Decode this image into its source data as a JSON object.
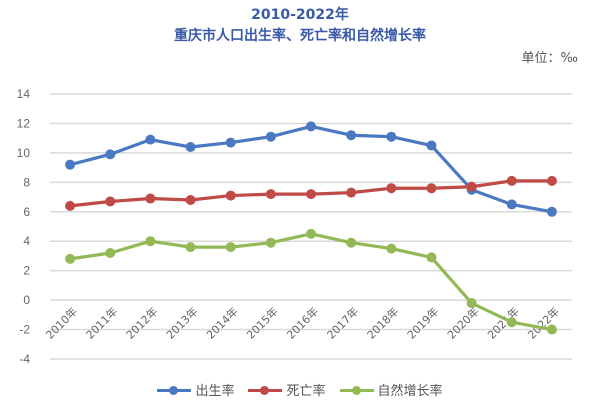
{
  "header": {
    "title_line1": "2010-2022年",
    "title_line2": "重庆市人口出生率、死亡率和自然增长率",
    "unit": "单位：‰"
  },
  "chart_data": {
    "type": "line",
    "title": "2010-2022年 重庆市人口出生率、死亡率和自然增长率",
    "xlabel": "",
    "ylabel": "‰",
    "ylim": [
      -4,
      14
    ],
    "yticks": [
      14,
      12,
      10,
      8,
      6,
      4,
      2,
      0,
      -2,
      -4
    ],
    "grid": true,
    "legend_position": "bottom",
    "categories": [
      "2010年",
      "2011年",
      "2012年",
      "2013年",
      "2014年",
      "2015年",
      "2016年",
      "2017年",
      "2018年",
      "2019年",
      "2020年",
      "2021年",
      "2022年"
    ],
    "series": [
      {
        "name": "出生率",
        "color": "#4a78c2",
        "values": [
          9.2,
          9.9,
          10.9,
          10.4,
          10.7,
          11.1,
          11.8,
          11.2,
          11.1,
          10.5,
          7.5,
          6.5,
          6.0
        ]
      },
      {
        "name": "死亡率",
        "color": "#bf4a46",
        "values": [
          6.4,
          6.7,
          6.9,
          6.8,
          7.1,
          7.2,
          7.2,
          7.3,
          7.6,
          7.6,
          7.7,
          8.1,
          8.1
        ]
      },
      {
        "name": "自然增长率",
        "color": "#93b856",
        "values": [
          2.8,
          3.2,
          4.0,
          3.6,
          3.6,
          3.9,
          4.5,
          3.9,
          3.5,
          2.9,
          -0.2,
          -1.5,
          -2.0
        ]
      }
    ]
  }
}
